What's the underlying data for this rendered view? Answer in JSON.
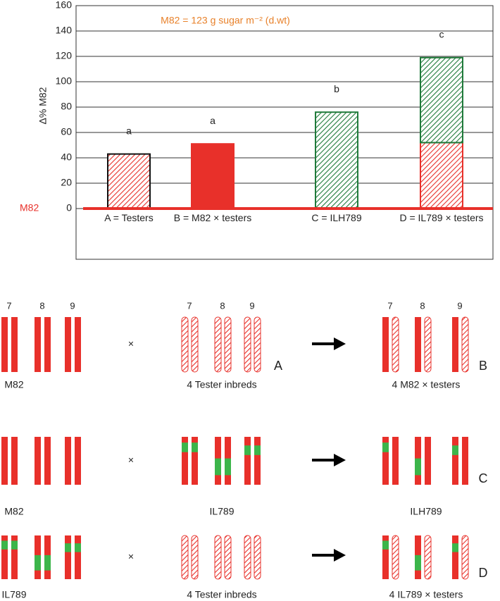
{
  "chart_data": {
    "type": "stacked-bar",
    "ylabel": "Δ% M82",
    "annotation": "M82 = 123 g sugar m⁻² (d.wt)",
    "baseline_label": "M82",
    "categories": [
      "A = Testers",
      "B = M82 × testers",
      "C = ILH789",
      "D = IL789 × testers"
    ],
    "series": [
      {
        "values": [
          43,
          51,
          76,
          52
        ],
        "colors": [
          "#e8302a",
          "#e8302a",
          "#1f7a3a",
          "#e8302a"
        ],
        "hatched": [
          true,
          false,
          true,
          true
        ]
      },
      {
        "values": [
          null,
          null,
          null,
          67
        ],
        "colors": [
          null,
          null,
          null,
          "#1f7a3a"
        ],
        "hatched": [
          null,
          null,
          null,
          true
        ]
      }
    ],
    "significance_letters": [
      "a",
      "a",
      "b",
      "c"
    ],
    "ylim": [
      -40,
      160
    ],
    "yticks": [
      0,
      20,
      40,
      60,
      80,
      100,
      120,
      140,
      160
    ],
    "grid": true
  },
  "diagram": {
    "chromosome_numbers": [
      "7",
      "8",
      "9"
    ],
    "rows": [
      {
        "parent1": "M82",
        "cross": "×",
        "parent2": "4 Tester inbreds",
        "parent2_letter": "A",
        "offspring": "4 M82 × testers",
        "offspring_letter": "B"
      },
      {
        "parent1": "M82",
        "cross": "×",
        "parent2": "IL789",
        "offspring": "ILH789",
        "offspring_letter": "C"
      },
      {
        "parent1": "IL789",
        "cross": "×",
        "parent2": "4 Tester inbreds",
        "offspring": "4 IL789 × testers",
        "offspring_letter": "D"
      }
    ]
  }
}
